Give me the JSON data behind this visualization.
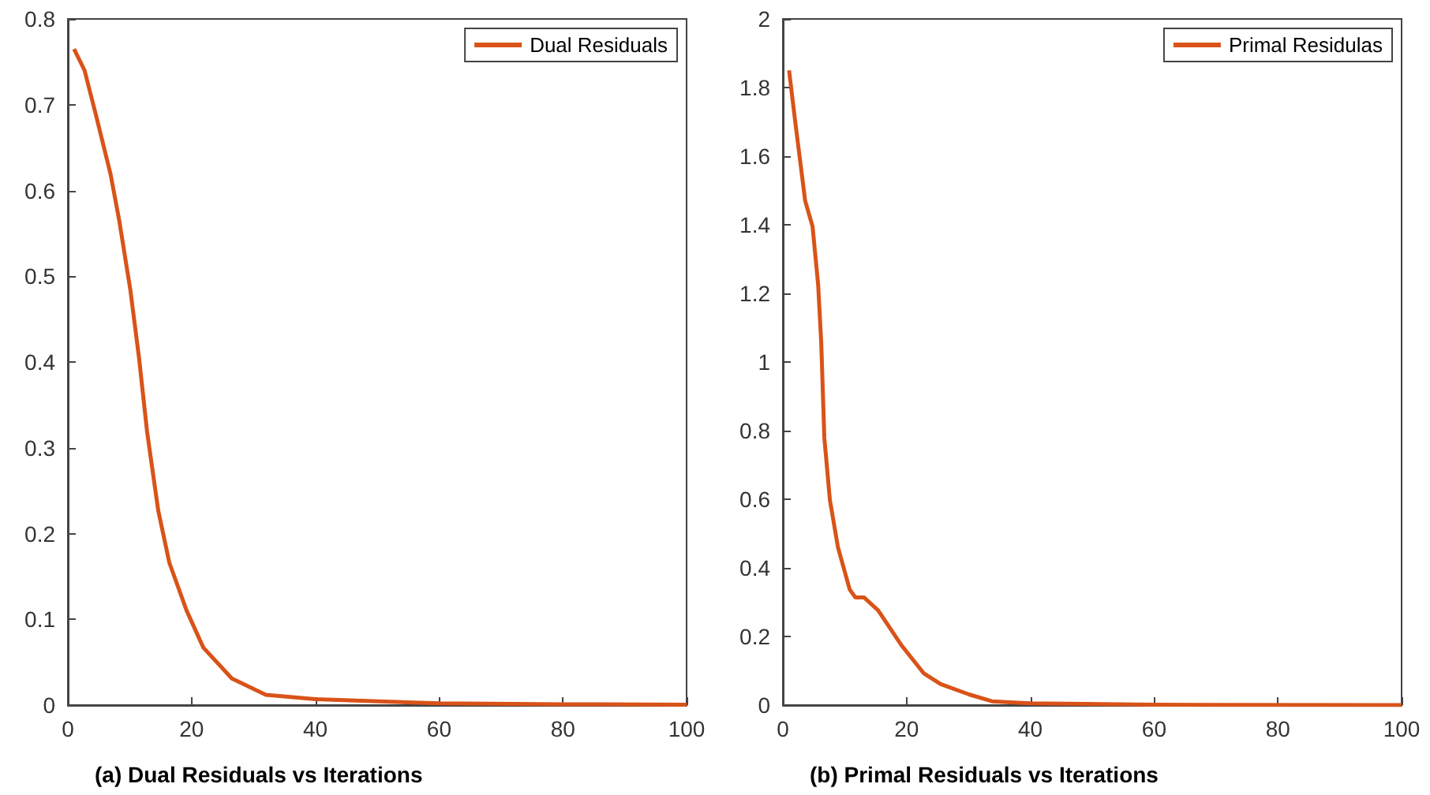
{
  "chart_data": [
    {
      "type": "line",
      "xlim": [
        0,
        100
      ],
      "ylim": [
        0,
        0.8
      ],
      "xticks": [
        0,
        20,
        40,
        60,
        80,
        100
      ],
      "yticks": [
        0,
        0.1,
        0.2,
        0.3,
        0.4,
        0.5,
        0.6,
        0.7,
        0.8
      ],
      "grid": false,
      "legend": "top right",
      "annotations": [
        "(a) Dual Residuals vs Iterations"
      ],
      "series": [
        {
          "name": "Dual Residuals",
          "color": "#d95319",
          "x": [
            1,
            2.7,
            4.6,
            6.9,
            8.3,
            10.1,
            11.5,
            12.8,
            14.6,
            16.4,
            19.2,
            21.9,
            26.5,
            32,
            40,
            60,
            80,
            100
          ],
          "values": [
            0.765,
            0.74,
            0.686,
            0.619,
            0.565,
            0.484,
            0.405,
            0.319,
            0.227,
            0.166,
            0.11,
            0.067,
            0.031,
            0.012,
            0.007,
            0.002,
            0.001,
            0.0005
          ]
        }
      ]
    },
    {
      "type": "line",
      "xlim": [
        0,
        100
      ],
      "ylim": [
        0,
        2
      ],
      "xticks": [
        0,
        20,
        40,
        60,
        80,
        100
      ],
      "yticks": [
        0,
        0.2,
        0.4,
        0.6,
        0.8,
        1,
        1.2,
        1.4,
        1.6,
        1.8,
        2
      ],
      "grid": false,
      "legend": "top right",
      "annotations": [
        "(b) Primal Residuals vs Iterations"
      ],
      "series": [
        {
          "name": "Primal Residulas",
          "color": "#d95319",
          "x": [
            1,
            2,
            3.6,
            4.8,
            5.7,
            6.2,
            6.7,
            7.6,
            8.9,
            10.8,
            11.7,
            13.1,
            15.4,
            19.1,
            22.8,
            25.5,
            30.1,
            33.8,
            40,
            60,
            100
          ],
          "values": [
            1.85,
            1.7,
            1.47,
            1.395,
            1.226,
            1.057,
            0.78,
            0.598,
            0.46,
            0.337,
            0.314,
            0.314,
            0.276,
            0.176,
            0.092,
            0.061,
            0.031,
            0.011,
            0.005,
            0.001,
            0
          ]
        }
      ]
    }
  ]
}
